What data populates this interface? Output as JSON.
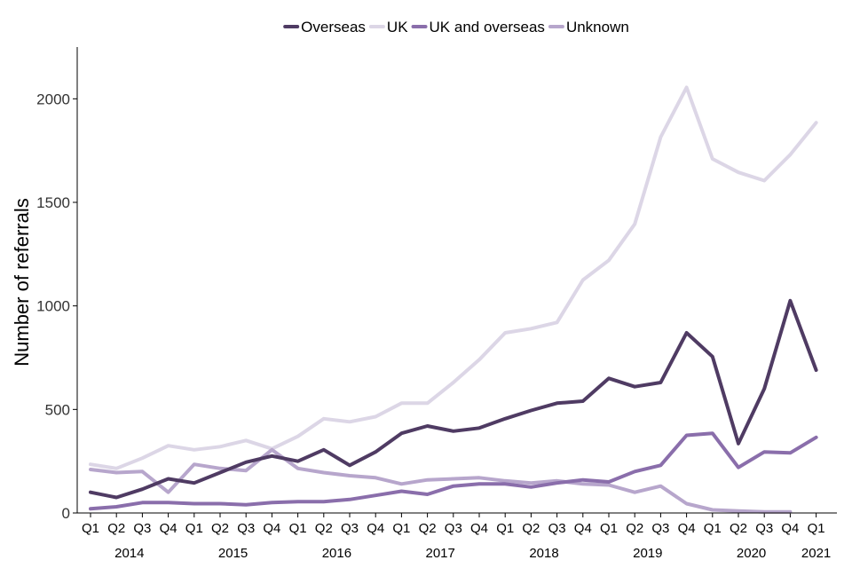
{
  "chart_data": {
    "type": "line",
    "title": "",
    "xlabel": "",
    "ylabel": "Number of referrals",
    "ylim": [
      0,
      2250
    ],
    "yticks": [
      0,
      500,
      1000,
      1500,
      2000
    ],
    "categories": [
      "Q1",
      "Q2",
      "Q3",
      "Q4",
      "Q1",
      "Q2",
      "Q3",
      "Q4",
      "Q1",
      "Q2",
      "Q3",
      "Q4",
      "Q1",
      "Q2",
      "Q3",
      "Q4",
      "Q1",
      "Q2",
      "Q3",
      "Q4",
      "Q1",
      "Q2",
      "Q3",
      "Q4",
      "Q1",
      "Q2",
      "Q3",
      "Q4",
      "Q1"
    ],
    "years": [
      {
        "label": "2014",
        "start": 0,
        "end": 3
      },
      {
        "label": "2015",
        "start": 4,
        "end": 7
      },
      {
        "label": "2016",
        "start": 8,
        "end": 11
      },
      {
        "label": "2017",
        "start": 12,
        "end": 15
      },
      {
        "label": "2018",
        "start": 16,
        "end": 19
      },
      {
        "label": "2019",
        "start": 20,
        "end": 23
      },
      {
        "label": "2020",
        "start": 24,
        "end": 27
      },
      {
        "label": "2021",
        "start": 28,
        "end": 28
      }
    ],
    "legend_position": "top",
    "series": [
      {
        "name": "Overseas",
        "color": "#4f3b63",
        "values": [
          100,
          75,
          115,
          165,
          145,
          195,
          245,
          275,
          250,
          305,
          230,
          295,
          385,
          420,
          395,
          410,
          455,
          495,
          530,
          540,
          650,
          610,
          630,
          870,
          755,
          335,
          600,
          1025,
          690
        ]
      },
      {
        "name": "UK",
        "color": "#dcd6e6",
        "values": [
          235,
          215,
          265,
          325,
          305,
          320,
          350,
          310,
          370,
          455,
          440,
          465,
          530,
          530,
          630,
          740,
          870,
          890,
          920,
          1125,
          1220,
          1395,
          1815,
          2055,
          1710,
          1645,
          1605,
          1730,
          1885
        ]
      },
      {
        "name": "UK and overseas",
        "color": "#8a6eab",
        "values": [
          20,
          30,
          50,
          50,
          45,
          45,
          40,
          50,
          55,
          55,
          65,
          85,
          105,
          90,
          130,
          140,
          140,
          125,
          145,
          160,
          150,
          200,
          230,
          375,
          385,
          220,
          295,
          290,
          365
        ]
      },
      {
        "name": "Unknown",
        "color": "#b7a6cc",
        "values": [
          210,
          195,
          200,
          100,
          235,
          215,
          205,
          305,
          215,
          195,
          180,
          170,
          140,
          160,
          165,
          170,
          155,
          145,
          155,
          140,
          135,
          100,
          130,
          45,
          15,
          10,
          5,
          5,
          null
        ]
      }
    ]
  }
}
